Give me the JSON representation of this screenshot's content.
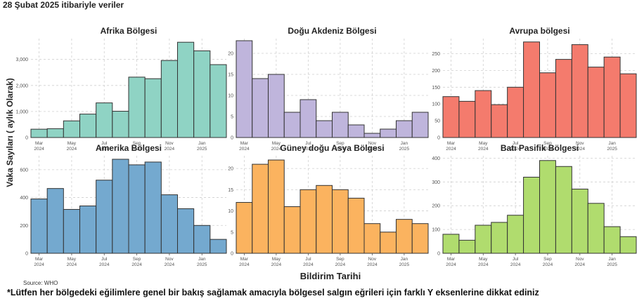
{
  "header": "28 Şubat 2025 itibariyle veriler",
  "ylabel": "Vaka Sayıları ( aylık Olarak)",
  "xlabel": "Bildirim Tarihi",
  "source": "Source: WHO",
  "footnote": "*Lütfen her bölgedeki eğilimlere genel bir bakış sağlamak amacıyla bölgesel salgın eğrileri için farklı Y eksenlerine dikkat ediniz",
  "chart_data": [
    {
      "type": "bar",
      "title": "Afrika Bölgesi",
      "color": "#8fd3c4",
      "categories": [
        "Mar 2024",
        "Apr 2024",
        "May 2024",
        "Jun 2024",
        "Jul 2024",
        "Aug 2024",
        "Sep 2024",
        "Oct 2024",
        "Nov 2024",
        "Dec 2024",
        "Jan 2025",
        "Feb 2025"
      ],
      "values": [
        320,
        340,
        640,
        900,
        1330,
        1010,
        2320,
        2260,
        2960,
        3660,
        3330,
        2800
      ],
      "yticks": [
        0,
        1000,
        2000,
        3000
      ],
      "ytick_labels": [
        "0",
        "1,000",
        "2,000",
        "3,000"
      ],
      "ylim": [
        0,
        3800
      ],
      "xticks": [
        "Mar\n2024",
        "May\n2024",
        "Jul\n2024",
        "Sep\n2024",
        "Nov\n2024",
        "Jan\n2025"
      ]
    },
    {
      "type": "bar",
      "title": "Doğu Akdeniz Bölgesi",
      "color": "#bfb5dc",
      "categories": [
        "Mar 2024",
        "Apr 2024",
        "May 2024",
        "Jun 2024",
        "Jul 2024",
        "Aug 2024",
        "Sep 2024",
        "Oct 2024",
        "Nov 2024",
        "Dec 2024",
        "Jan 2025",
        "Feb 2025"
      ],
      "values": [
        23,
        14,
        15,
        6,
        9,
        4,
        6,
        3,
        1,
        2,
        4,
        6
      ],
      "yticks": [
        0,
        5,
        10,
        15,
        20
      ],
      "ytick_labels": [
        "0",
        "5",
        "10",
        "15",
        "20"
      ],
      "ylim": [
        0,
        23.5
      ],
      "xticks": [
        "Mar\n2024",
        "May\n2024",
        "Jul\n2024",
        "Sep\n2024",
        "Nov\n2024",
        "Jan\n2025"
      ]
    },
    {
      "type": "bar",
      "title": "Avrupa bölgesi",
      "color": "#f47b6d",
      "categories": [
        "Mar 2024",
        "Apr 2024",
        "May 2024",
        "Jun 2024",
        "Jul 2024",
        "Aug 2024",
        "Sep 2024",
        "Oct 2024",
        "Nov 2024",
        "Dec 2024",
        "Jan 2025",
        "Feb 2025"
      ],
      "values": [
        122,
        108,
        140,
        98,
        150,
        285,
        193,
        233,
        277,
        210,
        240,
        190
      ],
      "yticks": [
        0,
        50,
        100,
        150,
        200,
        250
      ],
      "ytick_labels": [
        "0",
        "50",
        "100",
        "150",
        "200",
        "250"
      ],
      "ylim": [
        0,
        295
      ],
      "xticks": [
        "Mar\n2024",
        "May\n2024",
        "Jul\n2024",
        "Sep\n2024",
        "Nov\n2024",
        "Jan\n2025"
      ]
    },
    {
      "type": "bar",
      "title": "Amerika Bölgesi",
      "color": "#74a9cf",
      "categories": [
        "Mar 2024",
        "Apr 2024",
        "May 2024",
        "Jun 2024",
        "Jul 2024",
        "Aug 2024",
        "Sep 2024",
        "Oct 2024",
        "Nov 2024",
        "Dec 2024",
        "Jan 2025",
        "Feb 2025"
      ],
      "values": [
        390,
        465,
        315,
        340,
        525,
        675,
        635,
        655,
        420,
        320,
        200,
        100
      ],
      "yticks": [
        0,
        200,
        400,
        600
      ],
      "ytick_labels": [
        "0",
        "200",
        "400",
        "600"
      ],
      "ylim": [
        0,
        700
      ],
      "xticks": [
        "Mar\n2024",
        "May\n2024",
        "Jul\n2024",
        "Sep\n2024",
        "Nov\n2024",
        "Jan\n2025"
      ]
    },
    {
      "type": "bar",
      "title": "Güney doğu Asya Bölgesi",
      "color": "#fbb35f",
      "categories": [
        "Mar 2024",
        "Apr 2024",
        "May 2024",
        "Jun 2024",
        "Jul 2024",
        "Aug 2024",
        "Sep 2024",
        "Oct 2024",
        "Nov 2024",
        "Dec 2024",
        "Jan 2025",
        "Feb 2025"
      ],
      "values": [
        12,
        21,
        22,
        11,
        15,
        16,
        15,
        13,
        7,
        5,
        8,
        7
      ],
      "yticks": [
        0,
        5,
        10,
        15,
        20
      ],
      "ytick_labels": [
        "0",
        "5",
        "10",
        "15",
        "20"
      ],
      "ylim": [
        0,
        23
      ],
      "xticks": [
        "Mar\n2024",
        "May\n2024",
        "Jul\n2024",
        "Sep\n2024",
        "Nov\n2024",
        "Jan\n2025"
      ]
    },
    {
      "type": "bar",
      "title": "Batı Pasifik Bölgesi",
      "color": "#b0dc6e",
      "categories": [
        "Mar 2024",
        "Apr 2024",
        "May 2024",
        "Jun 2024",
        "Jul 2024",
        "Aug 2024",
        "Sep 2024",
        "Oct 2024",
        "Nov 2024",
        "Dec 2024",
        "Jan 2025",
        "Feb 2025"
      ],
      "values": [
        80,
        55,
        118,
        130,
        160,
        320,
        390,
        365,
        270,
        210,
        112,
        70
      ],
      "yticks": [
        0,
        100,
        200,
        300,
        400
      ],
      "ytick_labels": [
        "0",
        "100",
        "200",
        "300",
        "400"
      ],
      "ylim": [
        0,
        410
      ],
      "xticks": [
        "Mar\n2024",
        "May\n2024",
        "Jul\n2024",
        "Sep\n2024",
        "Nov\n2024",
        "Jan\n2025"
      ]
    }
  ]
}
